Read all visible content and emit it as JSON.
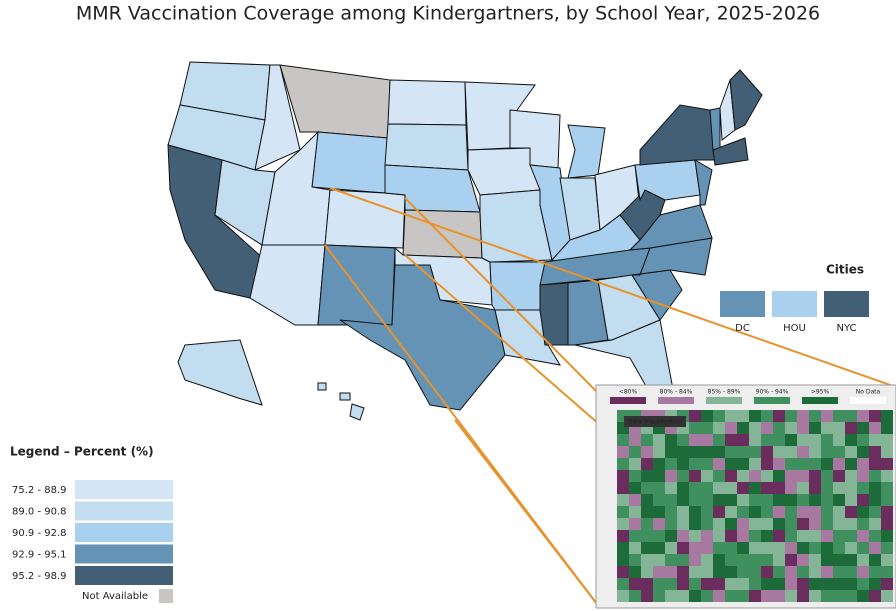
{
  "title": "MMR Vaccination Coverage among Kindergartners, by School Year, 2025-2026",
  "legend": {
    "title": "Legend – Percent (%)",
    "items": [
      {
        "label": "75.2 - 88.9",
        "color": "#d4e6f6"
      },
      {
        "label": "89.0 - 90.8",
        "color": "#c2dcf0"
      },
      {
        "label": "90.9 - 92.8",
        "color": "#a9d1ef"
      },
      {
        "label": "92.9 - 95.1",
        "color": "#6593b5"
      },
      {
        "label": "95.2 - 98.9",
        "color": "#435f75"
      }
    ],
    "not_available": {
      "label": "Not Available",
      "color": "#c8c6c4"
    }
  },
  "cities": {
    "title": "Cities",
    "items": [
      {
        "label": "DC",
        "color": "#6593b5"
      },
      {
        "label": "HOU",
        "color": "#a9d1ef"
      },
      {
        "label": "NYC",
        "color": "#435f75"
      }
    ]
  },
  "inset": {
    "legend": [
      {
        "label": "<80%",
        "color": "#6b2c5e"
      },
      {
        "label": "80% - 84%",
        "color": "#a879a0"
      },
      {
        "label": "85% - 89%",
        "color": "#84b596"
      },
      {
        "label": "90% - 94%",
        "color": "#3f8f5f"
      },
      {
        "label": ">95%",
        "color": "#1e6b3a"
      },
      {
        "label": "No Data",
        "color": "#ffffff"
      }
    ],
    "badge": "Data Visualization"
  }
}
